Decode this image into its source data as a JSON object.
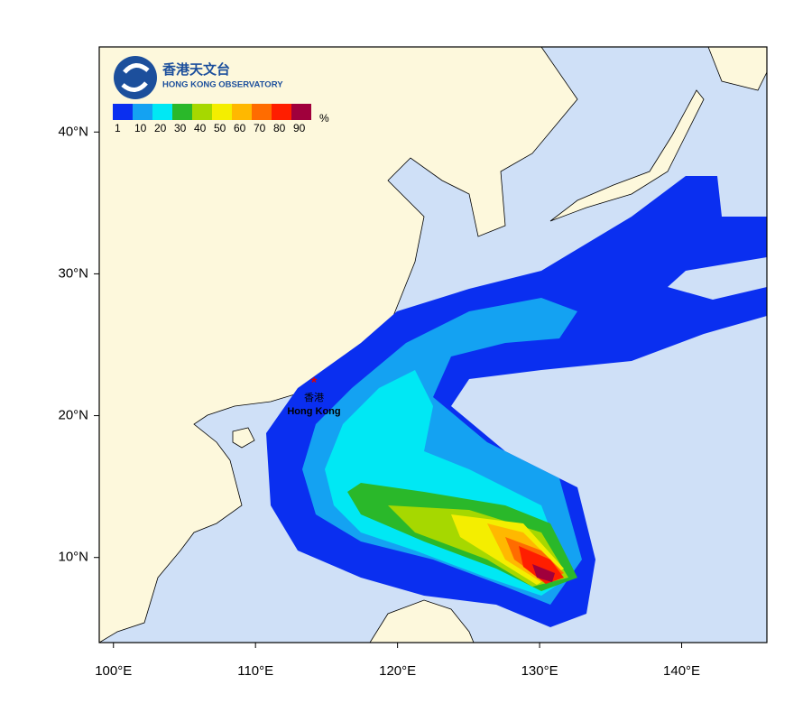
{
  "header": {
    "logo_zh": "香港天文台",
    "logo_en": "HONG KONG OBSERVATORY"
  },
  "legend": {
    "unit": "%",
    "levels": [
      {
        "value": 1,
        "color": "#0a2ff0"
      },
      {
        "value": 10,
        "color": "#14a2f2"
      },
      {
        "value": 20,
        "color": "#00e8f4"
      },
      {
        "value": 30,
        "color": "#2ab82a"
      },
      {
        "value": 40,
        "color": "#a6d800"
      },
      {
        "value": 50,
        "color": "#f4ee00"
      },
      {
        "value": 60,
        "color": "#ffb800"
      },
      {
        "value": 70,
        "color": "#ff6c00"
      },
      {
        "value": 80,
        "color": "#ff1e00"
      },
      {
        "value": 90,
        "color": "#a0003c"
      }
    ]
  },
  "map": {
    "lon_range": [
      99,
      146
    ],
    "lat_range": [
      4,
      46
    ],
    "lat_ticks": [
      {
        "value": 40,
        "label": "40°N"
      },
      {
        "value": 30,
        "label": "30°N"
      },
      {
        "value": 20,
        "label": "20°N"
      },
      {
        "value": 10,
        "label": "10°N"
      }
    ],
    "lon_ticks": [
      {
        "value": 100,
        "label": "100°E"
      },
      {
        "value": 110,
        "label": "110°E"
      },
      {
        "value": 120,
        "label": "120°E"
      },
      {
        "value": 130,
        "label": "130°E"
      },
      {
        "value": 140,
        "label": "140°E"
      }
    ]
  },
  "place": {
    "zh": "香港",
    "en": "Hong Kong"
  }
}
